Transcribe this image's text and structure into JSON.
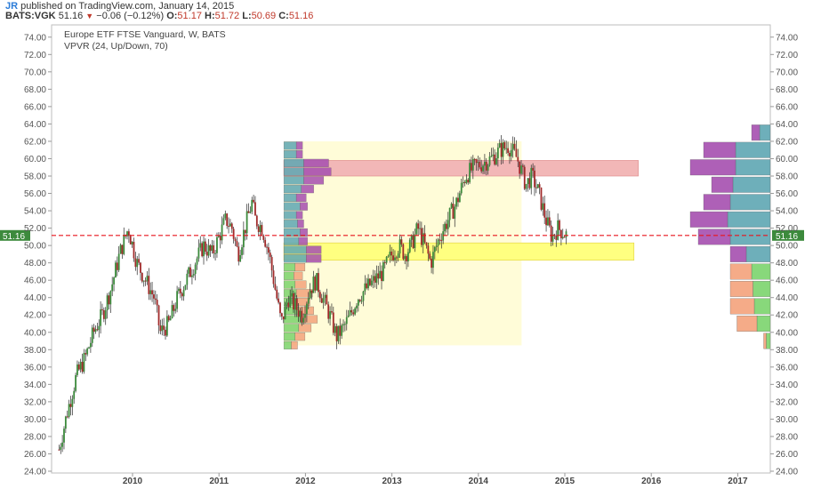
{
  "header": {
    "author": "JR",
    "published": "published on TradingView.com, January 14, 2015",
    "symbol": "BATS:VGK",
    "last": "51.16",
    "change": "−0.06 (−0.12%)",
    "o_label": "O:",
    "o": "51.17",
    "h_label": "H:",
    "h": "51.72",
    "l_label": "L:",
    "l": "50.69",
    "c_label": "C:",
    "c": "51.16"
  },
  "legend": {
    "title": "Europe ETF FTSE Vanguard, W, BATS",
    "indicator": "VPVR (24, Up/Down, 70)"
  },
  "colors": {
    "up": "#3c8a3c",
    "down": "#a12a2a",
    "wick": "#2b2b2b",
    "last_line": "#e8141c",
    "last_badge": "#3c8a3c",
    "vol_up": "#5fa7b3",
    "vol_down": "#a64fb0",
    "vol_up_low": "#7cd46d",
    "vol_down_low": "#f4a37c",
    "value_area": "#fffcd8",
    "poc": "#ffff80",
    "zone_red": "#f2b7b7"
  },
  "chart_data": {
    "type": "candlestick",
    "title": "Europe ETF FTSE Vanguard, W, BATS",
    "last_price": 51.16,
    "ylim": [
      24,
      75
    ],
    "y_ticks": [
      "74.00",
      "72.00",
      "70.00",
      "68.00",
      "66.00",
      "64.00",
      "62.00",
      "60.00",
      "58.00",
      "56.00",
      "54.00",
      "52.00",
      "50.00",
      "48.00",
      "46.00",
      "44.00",
      "42.00",
      "40.00",
      "38.00",
      "36.00",
      "34.00",
      "32.00",
      "30.00",
      "28.00",
      "26.00",
      "24.00"
    ],
    "x_ticks": [
      "2010",
      "2011",
      "2012",
      "2013",
      "2014",
      "2015",
      "2016",
      "2017"
    ],
    "price_path": [
      [
        2009.15,
        26.5
      ],
      [
        2009.25,
        31
      ],
      [
        2009.35,
        35
      ],
      [
        2009.45,
        37
      ],
      [
        2009.55,
        40
      ],
      [
        2009.65,
        42
      ],
      [
        2009.75,
        45
      ],
      [
        2009.85,
        49
      ],
      [
        2009.95,
        52
      ],
      [
        2010.05,
        48
      ],
      [
        2010.15,
        46
      ],
      [
        2010.25,
        44
      ],
      [
        2010.32,
        40
      ],
      [
        2010.42,
        41
      ],
      [
        2010.52,
        44
      ],
      [
        2010.62,
        46
      ],
      [
        2010.72,
        48
      ],
      [
        2010.82,
        50
      ],
      [
        2010.92,
        49
      ],
      [
        2011.0,
        51
      ],
      [
        2011.08,
        53
      ],
      [
        2011.15,
        52
      ],
      [
        2011.22,
        49
      ],
      [
        2011.3,
        52
      ],
      [
        2011.38,
        55
      ],
      [
        2011.42,
        53
      ],
      [
        2011.5,
        52
      ],
      [
        2011.58,
        49
      ],
      [
        2011.65,
        45
      ],
      [
        2011.72,
        41
      ],
      [
        2011.8,
        44
      ],
      [
        2011.88,
        43
      ],
      [
        2011.96,
        42
      ],
      [
        2012.05,
        45
      ],
      [
        2012.12,
        46
      ],
      [
        2012.2,
        44
      ],
      [
        2012.28,
        42
      ],
      [
        2012.36,
        39.5
      ],
      [
        2012.44,
        40.5
      ],
      [
        2012.52,
        42
      ],
      [
        2012.6,
        44
      ],
      [
        2012.7,
        45
      ],
      [
        2012.8,
        46
      ],
      [
        2012.9,
        47
      ],
      [
        2013.0,
        49
      ],
      [
        2013.08,
        50
      ],
      [
        2013.15,
        49
      ],
      [
        2013.22,
        50
      ],
      [
        2013.3,
        52
      ],
      [
        2013.38,
        50
      ],
      [
        2013.45,
        48
      ],
      [
        2013.55,
        51
      ],
      [
        2013.65,
        53
      ],
      [
        2013.75,
        55
      ],
      [
        2013.85,
        58
      ],
      [
        2013.95,
        59
      ],
      [
        2014.05,
        59.5
      ],
      [
        2014.15,
        60
      ],
      [
        2014.25,
        61
      ],
      [
        2014.35,
        61.5
      ],
      [
        2014.45,
        60
      ],
      [
        2014.55,
        57
      ],
      [
        2014.62,
        58
      ],
      [
        2014.7,
        56
      ],
      [
        2014.78,
        53
      ],
      [
        2014.85,
        51
      ],
      [
        2014.92,
        52
      ],
      [
        2015.02,
        51.2
      ]
    ],
    "vp_right": {
      "bins_from": 38,
      "bin_size": 2,
      "bins": [
        {
          "price": 38,
          "up": 0.3,
          "down": 0.2
        },
        {
          "price": 40,
          "up": 1.0,
          "down": 1.5
        },
        {
          "price": 42,
          "up": 1.2,
          "down": 1.8
        },
        {
          "price": 44,
          "up": 1.3,
          "down": 1.7
        },
        {
          "price": 46,
          "up": 1.4,
          "down": 1.6
        },
        {
          "price": 48,
          "up": 1.8,
          "down": 1.2
        },
        {
          "price": 50,
          "up": 3.0,
          "down": 2.4
        },
        {
          "price": 52,
          "up": 3.2,
          "down": 2.8
        },
        {
          "price": 54,
          "up": 3.0,
          "down": 2.0
        },
        {
          "price": 56,
          "up": 2.8,
          "down": 1.6
        },
        {
          "price": 58,
          "up": 2.6,
          "down": 3.4
        },
        {
          "price": 60,
          "up": 2.6,
          "down": 2.4
        },
        {
          "price": 62,
          "up": 0.8,
          "down": 0.6
        }
      ]
    },
    "vp_left": {
      "bins_from": 38,
      "bin_size": 1,
      "bins": [
        {
          "price": 38.5,
          "up": 0.6,
          "down": 0.5
        },
        {
          "price": 39.5,
          "up": 0.9,
          "down": 0.8
        },
        {
          "price": 40.5,
          "up": 1.2,
          "down": 1.0
        },
        {
          "price": 41.5,
          "up": 1.4,
          "down": 1.3
        },
        {
          "price": 42.5,
          "up": 1.2,
          "down": 1.2
        },
        {
          "price": 43.5,
          "up": 1.1,
          "down": 1.0
        },
        {
          "price": 44.5,
          "up": 1.0,
          "down": 1.3
        },
        {
          "price": 45.5,
          "up": 0.9,
          "down": 0.9
        },
        {
          "price": 46.5,
          "up": 0.8,
          "down": 0.7
        },
        {
          "price": 47.5,
          "up": 0.9,
          "down": 0.8
        },
        {
          "price": 48.5,
          "up": 1.8,
          "down": 1.2
        },
        {
          "price": 49.5,
          "up": 1.8,
          "down": 1.2
        },
        {
          "price": 50.5,
          "up": 1.2,
          "down": 0.7
        },
        {
          "price": 51.5,
          "up": 1.3,
          "down": 0.6
        },
        {
          "price": 52.5,
          "up": 1.1,
          "down": 0.5
        },
        {
          "price": 53.5,
          "up": 1.0,
          "down": 0.5
        },
        {
          "price": 54.5,
          "up": 1.3,
          "down": 0.6
        },
        {
          "price": 55.5,
          "up": 1.0,
          "down": 0.8
        },
        {
          "price": 56.5,
          "up": 1.4,
          "down": 1.0
        },
        {
          "price": 57.5,
          "up": 1.6,
          "down": 1.6
        },
        {
          "price": 58.5,
          "up": 1.6,
          "down": 2.2
        },
        {
          "price": 59.5,
          "up": 1.6,
          "down": 2.0
        },
        {
          "price": 60.5,
          "up": 1.0,
          "down": 0.5
        },
        {
          "price": 61.5,
          "up": 1.0,
          "down": 0.5
        }
      ]
    },
    "value_area": {
      "x_from": 2011.75,
      "x_to": 2014.5,
      "y_from": 38.5,
      "y_to": 62
    },
    "poc_zone": {
      "x_from": 2011.75,
      "x_to": 2015.8,
      "y_from": 48.3,
      "y_to": 50.3
    },
    "red_zone": {
      "x_from": 2011.75,
      "x_to": 2015.85,
      "y_from": 58.0,
      "y_to": 59.8
    }
  }
}
